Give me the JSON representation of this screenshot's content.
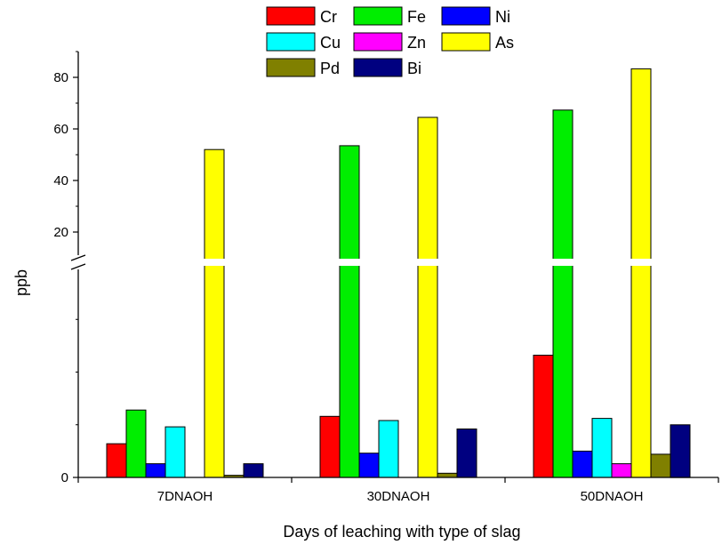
{
  "chart_data": {
    "type": "bar",
    "title": "",
    "xlabel": "Days of leaching with type of slag",
    "ylabel": "ppb",
    "categories": [
      "7DNAOH",
      "30DNAOH",
      "50DNAOH"
    ],
    "y_axis": {
      "broken": true,
      "lower_segment": {
        "range": [
          0,
          10
        ],
        "tick_labels": [
          "0"
        ]
      },
      "upper_segment": {
        "range": [
          10,
          90
        ],
        "tick_values": [
          20,
          40,
          60,
          80
        ],
        "tick_labels": [
          "20",
          "40",
          "60",
          "80"
        ]
      }
    },
    "series": [
      {
        "name": "Cr",
        "color": "#ff0000",
        "values": [
          1.6,
          2.9,
          5.8
        ]
      },
      {
        "name": "Fe",
        "color": "#00ee00",
        "values": [
          3.2,
          53.5,
          67.3
        ]
      },
      {
        "name": "Ni",
        "color": "#0000ff",
        "values": [
          0.65,
          1.15,
          1.25
        ]
      },
      {
        "name": "Cu",
        "color": "#00ffff",
        "values": [
          2.4,
          2.7,
          2.8
        ]
      },
      {
        "name": "Zn",
        "color": "#ff00ff",
        "values": [
          0,
          0,
          0.65
        ]
      },
      {
        "name": "As",
        "color": "#ffff00",
        "values": [
          52.0,
          64.5,
          83.3
        ]
      },
      {
        "name": "Pd",
        "color": "#808000",
        "values": [
          0.1,
          0.2,
          1.1
        ]
      },
      {
        "name": "Bi",
        "color": "#000080",
        "values": [
          0.65,
          2.3,
          2.5
        ]
      }
    ],
    "legend": {
      "position": "top-center"
    },
    "grid": false
  }
}
